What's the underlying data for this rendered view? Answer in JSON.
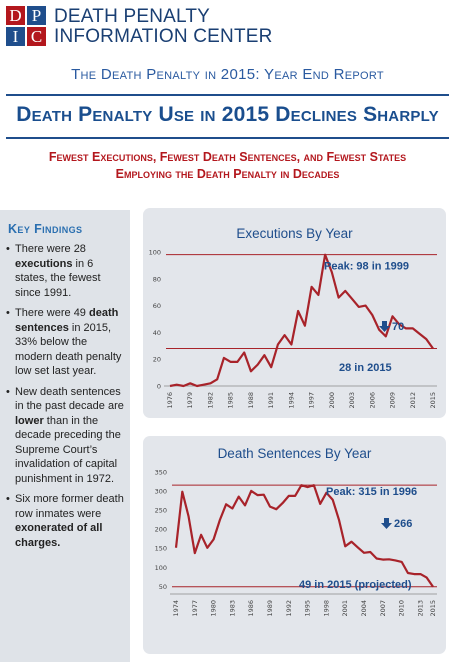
{
  "header": {
    "logo_letters": [
      "D",
      "P",
      "I",
      "C"
    ],
    "org_line1": "DEATH PENALTY",
    "org_line2": "INFORMATION CENTER",
    "report_title": "The Death Penalty in 2015: Year End Report",
    "headline": "Death Penalty Use in 2015 Declines Sharply",
    "subhead_line1": "Fewest Executions, Fewest Death Sentences, and Fewest States",
    "subhead_line2": "Employing the Death Penalty in Decades"
  },
  "colors": {
    "navy": "#1f4e8c",
    "red": "#b3171d",
    "line": "#a8232a",
    "logo_red": "#b3171d",
    "logo_blue": "#1f4e8c"
  },
  "findings": {
    "title": "Key Findings",
    "items": [
      {
        "pre": "There were 28 ",
        "bold": "executions",
        "post": " in 6 states, the fewest since 1991."
      },
      {
        "pre": "There were 49 ",
        "bold": "death sentences",
        "post": " in 2015, 33% below the modern death penalty low set last year."
      },
      {
        "pre": "New death sentences in the past decade are ",
        "bold": "lower",
        "post": " than in the decade preceding the Supreme Court’s invalidation of capital punishment in 1972."
      },
      {
        "pre": "Six more former death row inmates were ",
        "bold": "exonerated of all charges.",
        "post": ""
      }
    ]
  },
  "chart_data": [
    {
      "type": "line",
      "title": "Executions By Year",
      "x": [
        1976,
        1977,
        1978,
        1979,
        1980,
        1981,
        1982,
        1983,
        1984,
        1985,
        1986,
        1987,
        1988,
        1989,
        1990,
        1991,
        1992,
        1993,
        1994,
        1995,
        1996,
        1997,
        1998,
        1999,
        2000,
        2001,
        2002,
        2003,
        2004,
        2005,
        2006,
        2007,
        2008,
        2009,
        2010,
        2011,
        2012,
        2013,
        2014,
        2015
      ],
      "values": [
        0,
        1,
        0,
        2,
        0,
        1,
        2,
        5,
        21,
        18,
        18,
        25,
        11,
        16,
        23,
        14,
        31,
        38,
        31,
        56,
        45,
        74,
        68,
        98,
        85,
        66,
        71,
        65,
        59,
        60,
        53,
        42,
        37,
        52,
        46,
        43,
        43,
        39,
        35,
        28
      ],
      "x_ticks": [
        "1976",
        "1979",
        "1982",
        "1985",
        "1988",
        "1991",
        "1994",
        "1997",
        "2000",
        "2003",
        "2006",
        "2009",
        "2012",
        "2015"
      ],
      "y_ticks": [
        "0",
        "20",
        "40",
        "60",
        "80",
        "100"
      ],
      "ylim": [
        0,
        100
      ],
      "annotations": {
        "peak": "Peak: 98 in 1999",
        "change": "70",
        "latest": "28 in 2015"
      }
    },
    {
      "type": "line",
      "title": "Death Sentences By Year",
      "x": [
        1974,
        1975,
        1976,
        1977,
        1978,
        1979,
        1980,
        1981,
        1982,
        1983,
        1984,
        1985,
        1986,
        1987,
        1988,
        1989,
        1990,
        1991,
        1992,
        1993,
        1994,
        1995,
        1996,
        1997,
        1998,
        1999,
        2000,
        2001,
        2002,
        2003,
        2004,
        2005,
        2006,
        2007,
        2008,
        2009,
        2010,
        2011,
        2012,
        2013,
        2014,
        2015
      ],
      "values": [
        151,
        298,
        234,
        137,
        185,
        151,
        173,
        224,
        265,
        254,
        285,
        262,
        300,
        289,
        290,
        259,
        252,
        268,
        287,
        287,
        315,
        310,
        315,
        266,
        295,
        277,
        224,
        155,
        167,
        152,
        138,
        140,
        123,
        120,
        121,
        118,
        114,
        85,
        82,
        82,
        73,
        49
      ],
      "x_ticks": [
        "1974",
        "1977",
        "1980",
        "1983",
        "1986",
        "1989",
        "1992",
        "1995",
        "1998",
        "2001",
        "2004",
        "2007",
        "2010",
        "2013",
        "2015"
      ],
      "y_ticks": [
        "50",
        "100",
        "150",
        "200",
        "250",
        "300",
        "350"
      ],
      "ylim": [
        30,
        360
      ],
      "annotations": {
        "peak": "Peak: 315 in 1996",
        "change": "266",
        "latest": "49 in 2015 (projected)"
      }
    }
  ]
}
